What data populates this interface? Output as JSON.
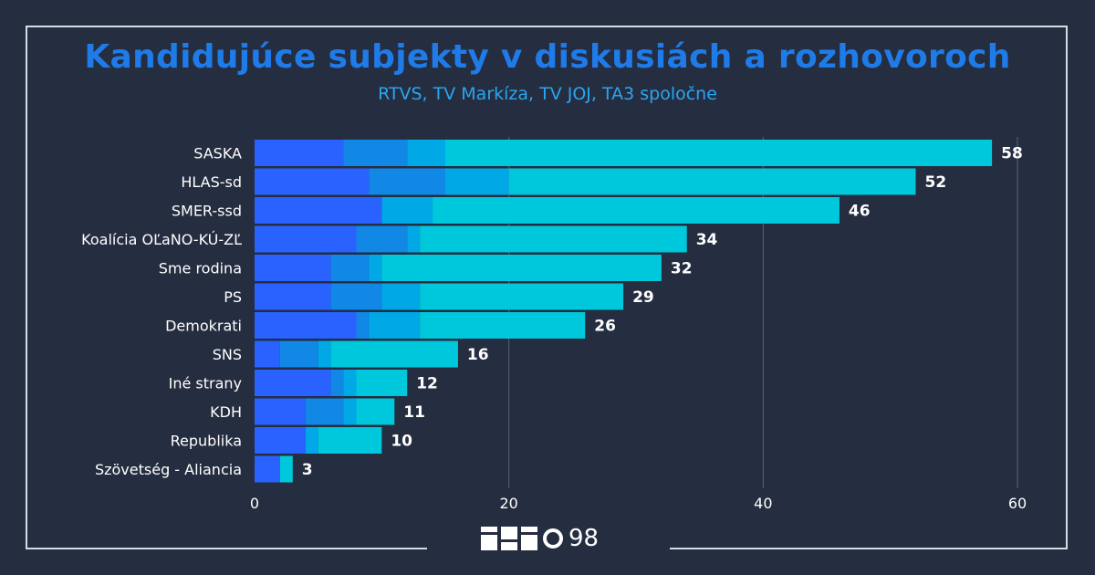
{
  "header": {
    "title": "Kandidujúce subjekty v diskusiách a rozhovoroch",
    "subtitle": "RTVS, TV Markíza, TV JOJ, TA3 spoločne"
  },
  "logo": {
    "text": "98"
  },
  "colors": {
    "background": "#252d40",
    "segments": [
      "#2962ff",
      "#1187e6",
      "#00a9e6",
      "#00c8dc"
    ],
    "title": "#1f7be8",
    "subtitle": "#2aa6f0",
    "grid": "#5a6376",
    "text": "#ffffff"
  },
  "chart_data": {
    "type": "bar",
    "orientation": "horizontal",
    "stacked": true,
    "title": "Kandidujúce subjekty v diskusiách a rozhovoroch",
    "subtitle": "RTVS, TV Markíza, TV JOJ, TA3 spoločne",
    "categories": [
      "SASKA",
      "HLAS-sd",
      "SMER-ssd",
      "Koalícia OĽaNO-KÚ-ZĽ",
      "Sme rodina",
      "PS",
      "Demokrati",
      "SNS",
      "Iné strany",
      "KDH",
      "Republika",
      "Szövetség - Aliancia"
    ],
    "segments": [
      [
        7,
        5,
        3,
        43
      ],
      [
        9,
        6,
        5,
        32
      ],
      [
        10,
        0,
        4,
        32
      ],
      [
        8,
        4,
        1,
        21
      ],
      [
        6,
        3,
        1,
        22
      ],
      [
        6,
        4,
        3,
        16
      ],
      [
        8,
        1,
        4,
        13
      ],
      [
        2,
        3,
        1,
        10
      ],
      [
        6,
        1,
        1,
        4
      ],
      [
        4,
        3,
        1,
        3
      ],
      [
        4,
        0,
        1,
        5
      ],
      [
        2,
        0,
        0,
        1
      ]
    ],
    "totals": [
      58,
      52,
      46,
      34,
      32,
      29,
      26,
      16,
      12,
      11,
      10,
      3
    ],
    "xticks": [
      "0",
      "20",
      "40",
      "60"
    ],
    "xlim": [
      0,
      60
    ],
    "grid": true,
    "legend": "none"
  }
}
